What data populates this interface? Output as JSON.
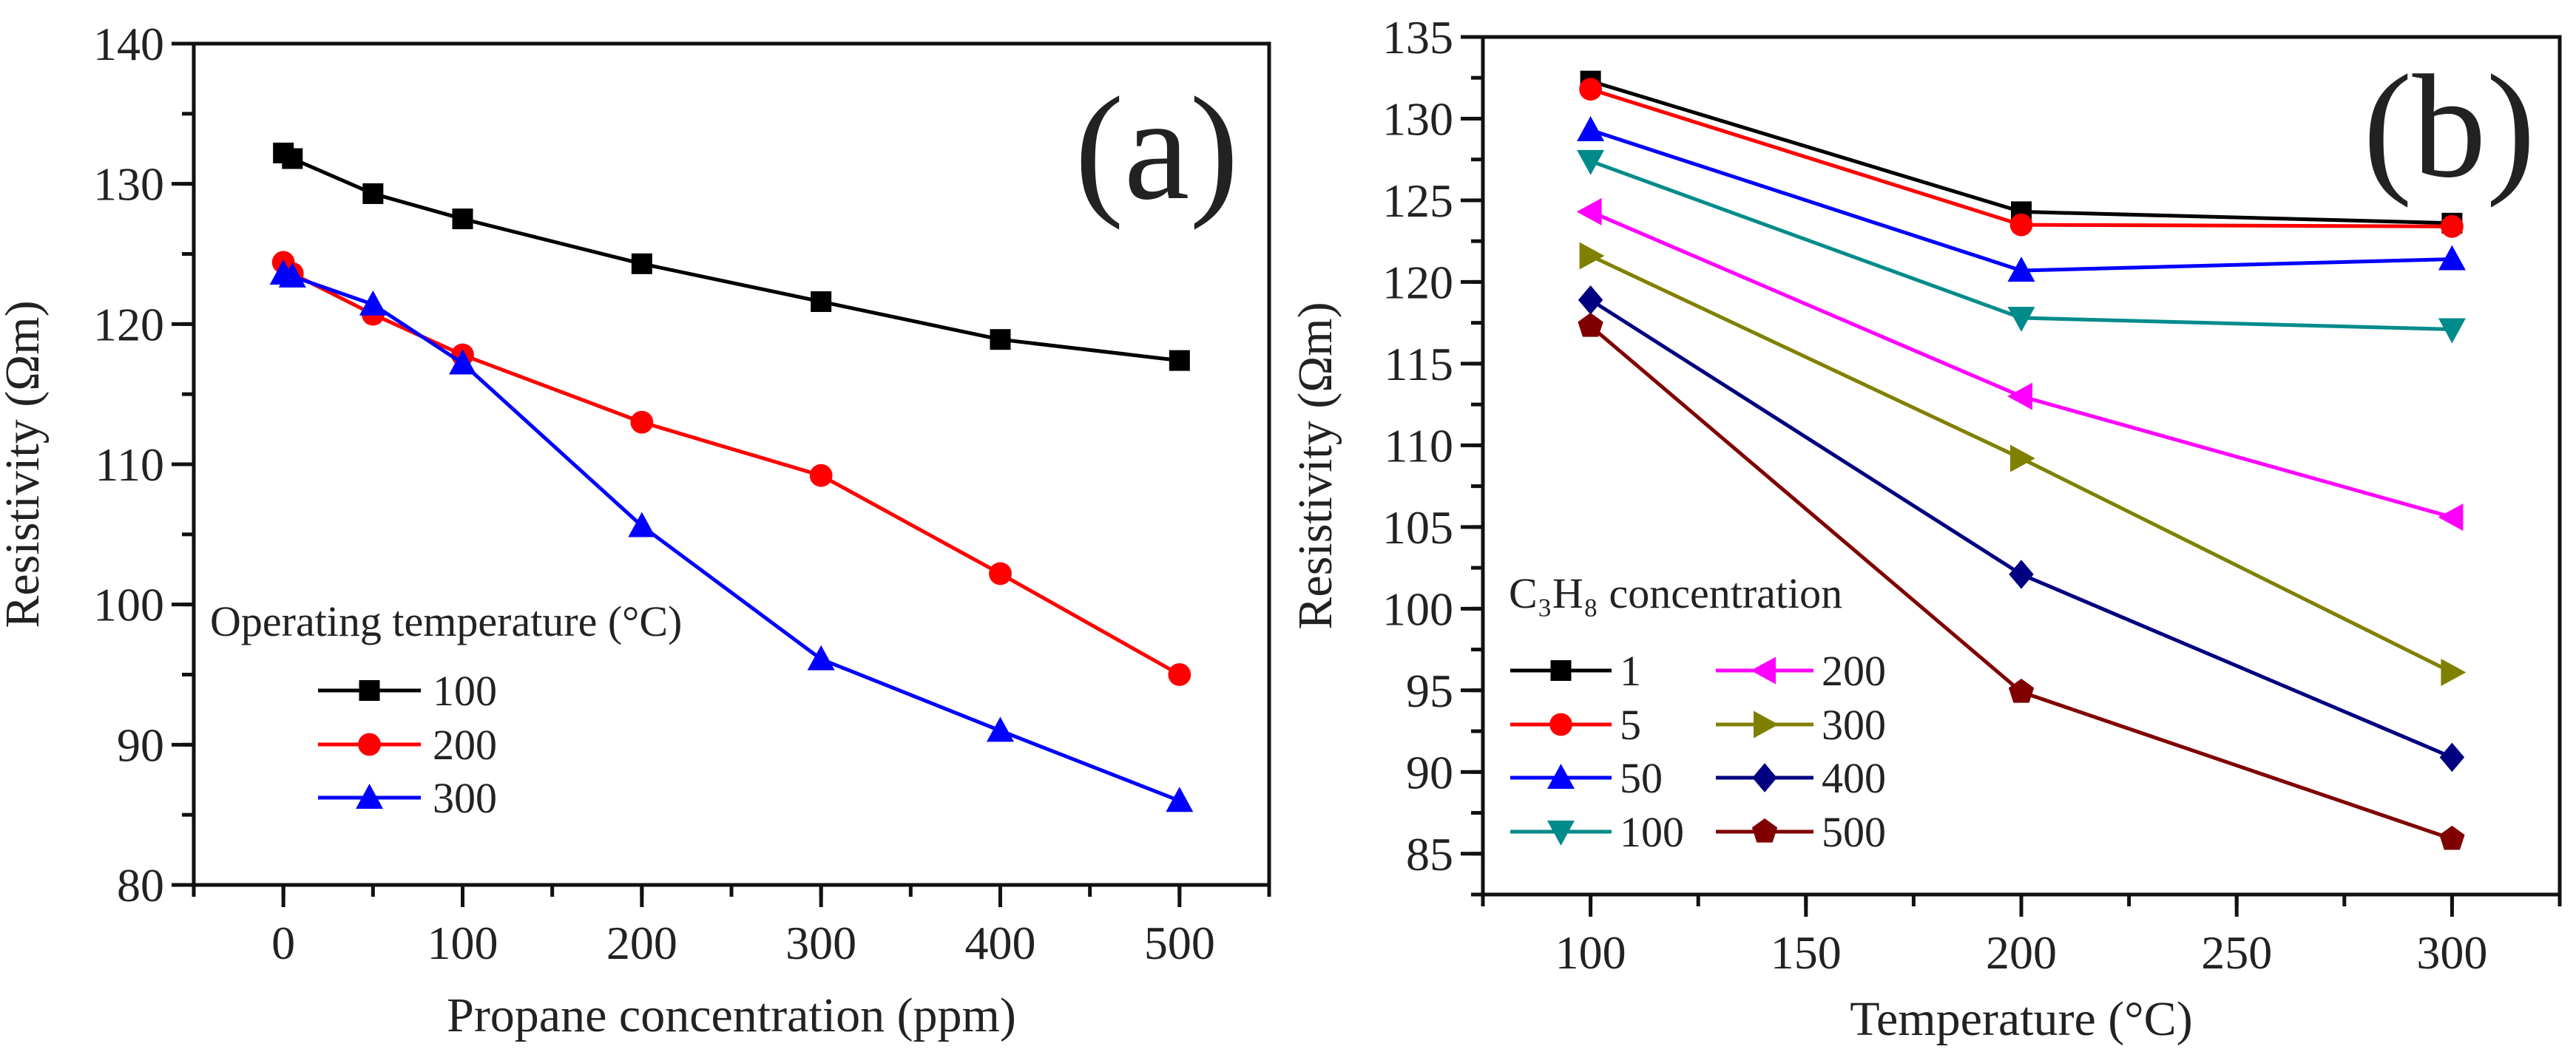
{
  "chart_data": [
    {
      "type": "line",
      "panel_label": "(a)",
      "xlabel": "Propane concentration (ppm)",
      "ylabel": "Resistivity (Ωm)",
      "xlim": [
        -50,
        550
      ],
      "ylim": [
        80,
        140
      ],
      "xticks": [
        0,
        100,
        200,
        300,
        400,
        500
      ],
      "xtick_labels": [
        "0",
        "100",
        "200",
        "300",
        "400",
        "500"
      ],
      "x_minor_step": 50,
      "yticks": [
        80,
        90,
        100,
        110,
        120,
        130,
        140
      ],
      "ytick_labels": [
        "80",
        "90",
        "100",
        "110",
        "120",
        "130",
        "140"
      ],
      "y_minor_step": 5,
      "grid": false,
      "legend_title": "Operating temperature (°C)",
      "legend_placement": "bottom-left",
      "series": [
        {
          "name": "100",
          "color": "#000000",
          "marker": "square",
          "x": [
            0,
            5,
            50,
            100,
            200,
            300,
            400,
            500
          ],
          "y": [
            132.2,
            131.8,
            129.3,
            127.5,
            124.3,
            121.6,
            118.9,
            117.4
          ]
        },
        {
          "name": "200",
          "color": "#ff0000",
          "marker": "circle",
          "x": [
            0,
            5,
            50,
            100,
            200,
            300,
            400,
            500
          ],
          "y": [
            124.4,
            123.6,
            120.7,
            117.8,
            113.0,
            109.2,
            102.2,
            95.0
          ]
        },
        {
          "name": "300",
          "color": "#0000ff",
          "marker": "triangle-up",
          "x": [
            0,
            5,
            50,
            100,
            200,
            300,
            400,
            500
          ],
          "y": [
            123.6,
            123.4,
            121.4,
            117.2,
            105.6,
            96.1,
            91.0,
            86.0
          ]
        }
      ]
    },
    {
      "type": "line",
      "panel_label": "(b)",
      "xlabel": "Temperature (°C)",
      "ylabel": "Resistivity (Ωm)",
      "xlim": [
        75,
        325
      ],
      "ylim": [
        82.5,
        135
      ],
      "xticks": [
        100,
        150,
        200,
        250,
        300
      ],
      "xtick_labels": [
        "100",
        "150",
        "200",
        "250",
        "300"
      ],
      "x_minor_step": 25,
      "yticks": [
        85,
        90,
        95,
        100,
        105,
        110,
        115,
        120,
        125,
        130,
        135
      ],
      "ytick_labels": [
        "85",
        "90",
        "95",
        "100",
        "105",
        "110",
        "115",
        "120",
        "125",
        "130",
        "135"
      ],
      "y_minor_step": 2.5,
      "grid": false,
      "legend_title": "C₃H₈ concentration",
      "legend_placement": "bottom-left",
      "series": [
        {
          "name": "1",
          "color": "#000000",
          "marker": "square",
          "x": [
            100,
            200,
            300
          ],
          "y": [
            132.3,
            124.3,
            123.6
          ]
        },
        {
          "name": "5",
          "color": "#ff0000",
          "marker": "circle",
          "x": [
            100,
            200,
            300
          ],
          "y": [
            131.8,
            123.5,
            123.4
          ]
        },
        {
          "name": "50",
          "color": "#0000ff",
          "marker": "triangle-up",
          "x": [
            100,
            200,
            300
          ],
          "y": [
            129.3,
            120.7,
            121.4
          ]
        },
        {
          "name": "100",
          "color": "#008b8b",
          "marker": "triangle-down",
          "x": [
            100,
            200,
            300
          ],
          "y": [
            127.4,
            117.8,
            117.1
          ]
        },
        {
          "name": "200",
          "color": "#ff00ff",
          "marker": "triangle-left",
          "x": [
            100,
            200,
            300
          ],
          "y": [
            124.3,
            113.0,
            105.6
          ]
        },
        {
          "name": "300",
          "color": "#808000",
          "marker": "triangle-right",
          "x": [
            100,
            200,
            300
          ],
          "y": [
            121.6,
            109.2,
            96.1
          ]
        },
        {
          "name": "400",
          "color": "#000080",
          "marker": "diamond",
          "x": [
            100,
            200,
            300
          ],
          "y": [
            118.9,
            102.1,
            90.9
          ]
        },
        {
          "name": "500",
          "color": "#800000",
          "marker": "pentagon",
          "x": [
            100,
            200,
            300
          ],
          "y": [
            117.3,
            94.9,
            85.9
          ]
        }
      ]
    }
  ]
}
